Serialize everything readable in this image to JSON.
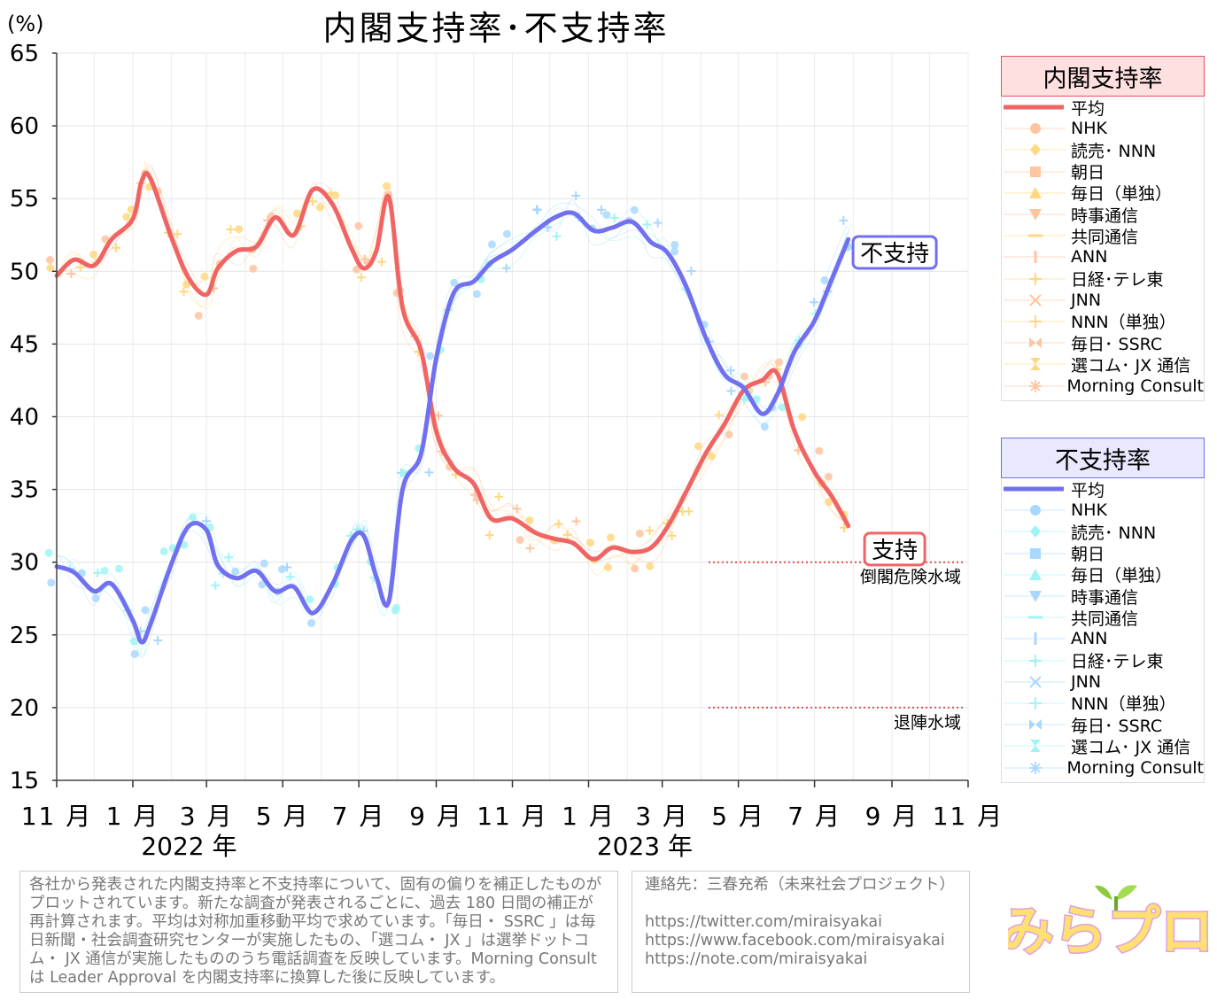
{
  "chart_data": {
    "type": "line",
    "title": "内閣支持率･不支持率",
    "ylabel": "(%)",
    "ylim": [
      15,
      65
    ],
    "yticks": [
      15,
      20,
      25,
      30,
      35,
      40,
      45,
      50,
      55,
      60,
      65
    ],
    "xlim": [
      "2021-11-01",
      "2023-11-01"
    ],
    "xtick_labels": [
      "11 月",
      "1 月",
      "3 月",
      "5 月",
      "7 月",
      "9 月",
      "11 月",
      "1 月",
      "3 月",
      "5 月",
      "7 月",
      "9 月",
      "11 月"
    ],
    "xtick_dates": [
      "2021-11-01",
      "2022-01-01",
      "2022-03-01",
      "2022-05-01",
      "2022-07-01",
      "2022-09-01",
      "2022-11-01",
      "2023-01-01",
      "2023-03-01",
      "2023-05-01",
      "2023-07-01",
      "2023-09-01",
      "2023-11-01"
    ],
    "year_labels": [
      {
        "text": "2022 年",
        "date": "2022-02-15"
      },
      {
        "text": "2023 年",
        "date": "2023-02-15"
      }
    ],
    "grid": true,
    "series": [
      {
        "name": "支持",
        "color": "#f06464",
        "x": [
          "2021-11-01",
          "2021-11-15",
          "2021-12-01",
          "2021-12-15",
          "2022-01-01",
          "2022-01-08",
          "2022-01-15",
          "2022-02-01",
          "2022-02-15",
          "2022-03-01",
          "2022-03-10",
          "2022-03-25",
          "2022-04-10",
          "2022-04-25",
          "2022-05-10",
          "2022-05-25",
          "2022-06-10",
          "2022-06-25",
          "2022-07-05",
          "2022-07-15",
          "2022-07-25",
          "2022-08-05",
          "2022-08-20",
          "2022-09-01",
          "2022-09-15",
          "2022-10-01",
          "2022-10-15",
          "2022-11-01",
          "2022-11-20",
          "2022-12-05",
          "2022-12-20",
          "2023-01-05",
          "2023-01-20",
          "2023-02-05",
          "2023-02-20",
          "2023-03-05",
          "2023-03-20",
          "2023-04-05",
          "2023-04-20",
          "2023-05-05",
          "2023-05-20",
          "2023-06-01",
          "2023-06-15",
          "2023-07-01",
          "2023-07-15",
          "2023-07-28"
        ],
        "values": [
          49.7,
          50.8,
          50.4,
          52.2,
          53.6,
          56.2,
          56.4,
          52.3,
          49.5,
          48.4,
          50.2,
          51.4,
          51.7,
          53.7,
          52.5,
          55.6,
          54.6,
          51.6,
          50.2,
          51.4,
          55.1,
          47.5,
          44.5,
          39.0,
          36.5,
          35.4,
          33.0,
          33.0,
          32.0,
          31.6,
          31.3,
          30.2,
          31.0,
          30.7,
          31.0,
          32.4,
          34.8,
          37.5,
          39.5,
          41.8,
          42.5,
          43.0,
          39.0,
          36.2,
          34.5,
          32.5
        ]
      },
      {
        "name": "不支持",
        "color": "#7070f0",
        "x": [
          "2021-11-01",
          "2021-11-15",
          "2021-12-01",
          "2021-12-15",
          "2022-01-01",
          "2022-01-08",
          "2022-01-15",
          "2022-02-01",
          "2022-02-15",
          "2022-03-01",
          "2022-03-10",
          "2022-03-25",
          "2022-04-10",
          "2022-04-25",
          "2022-05-10",
          "2022-05-25",
          "2022-06-10",
          "2022-06-25",
          "2022-07-05",
          "2022-07-15",
          "2022-07-25",
          "2022-08-05",
          "2022-08-20",
          "2022-09-01",
          "2022-09-15",
          "2022-10-01",
          "2022-10-15",
          "2022-11-01",
          "2022-11-20",
          "2022-12-05",
          "2022-12-20",
          "2023-01-05",
          "2023-01-20",
          "2023-02-05",
          "2023-02-20",
          "2023-03-05",
          "2023-03-20",
          "2023-04-05",
          "2023-04-20",
          "2023-05-05",
          "2023-05-20",
          "2023-06-01",
          "2023-06-15",
          "2023-07-01",
          "2023-07-15",
          "2023-07-28"
        ],
        "values": [
          29.7,
          29.3,
          28.0,
          28.5,
          26.0,
          24.5,
          25.7,
          29.9,
          32.5,
          32.2,
          29.8,
          28.9,
          29.4,
          28.0,
          28.3,
          26.5,
          28.5,
          31.5,
          31.8,
          29.0,
          27.3,
          35.0,
          37.5,
          44.0,
          48.5,
          49.3,
          50.6,
          51.5,
          52.8,
          53.7,
          54.0,
          52.8,
          53.0,
          53.4,
          52.0,
          51.3,
          49.0,
          45.4,
          42.9,
          42.0,
          40.2,
          41.5,
          44.5,
          46.6,
          49.5,
          52.2
        ]
      }
    ],
    "thresholds": [
      {
        "label": "倒閣危険水域",
        "value": 30
      },
      {
        "label": "退陣水域",
        "value": 20
      }
    ],
    "annotations": [
      {
        "text": "不支持",
        "date": "2023-08-20",
        "value": 51.3
      },
      {
        "text": "支持",
        "date": "2023-08-20",
        "value": 30.9
      }
    ]
  },
  "legend_support": {
    "title": "内閣支持率",
    "items": [
      "平均",
      "NHK",
      "読売･ NNN",
      "朝日",
      "毎日（単独）",
      "時事通信",
      "共同通信",
      "ANN",
      "日経･テレ東",
      "JNN",
      "NNN（単独）",
      "毎日･ SSRC",
      "選コム･ JX 通信",
      "Morning Consult"
    ],
    "colors": {
      "line": "#f06464",
      "marker": "#ffc4a0",
      "marker_alt": "#ffd880"
    }
  },
  "legend_disapprove": {
    "title": "不支持率",
    "items": [
      "平均",
      "NHK",
      "読売･ NNN",
      "朝日",
      "毎日（単独）",
      "時事通信",
      "共同通信",
      "ANN",
      "日経･テレ東",
      "JNN",
      "NNN（単独）",
      "毎日･ SSRC",
      "選コム･ JX 通信",
      "Morning Consult"
    ],
    "colors": {
      "line": "#7070f0",
      "marker": "#a8d8ff",
      "marker_alt": "#a0f4f4"
    }
  },
  "marker_icons": [
    "line",
    "circle",
    "diamond",
    "square",
    "triangle-up",
    "triangle-down",
    "dash",
    "bar",
    "plus-star",
    "x",
    "plus",
    "bowtie",
    "hourglass",
    "asterisk"
  ],
  "note_text": "各社から発表された内閣支持率と不支持率について、固有の偏りを補正したものがプロットされています。新たな調査が発表されるごとに、過去 180 日間の補正が再計算されます。平均は対称加重移動平均で求めています。「毎日・ SSRC 」は毎日新聞・社会調査研究センターが実施したもの、「選コム・ JX 」は選挙ドットコム・ JX 通信が実施したもののうち電話調査を反映しています。Morning Consult は Leader Approval を内閣支持率に換算した後に反映しています。",
  "contact": {
    "name": "連絡先：三春充希（未来社会プロジェクト）",
    "links": [
      "https://twitter.com/miraisyakai",
      "https://www.facebook.com/miraisyakai",
      "https://note.com/miraisyakai"
    ]
  },
  "logo": {
    "text": "みらプロ"
  }
}
